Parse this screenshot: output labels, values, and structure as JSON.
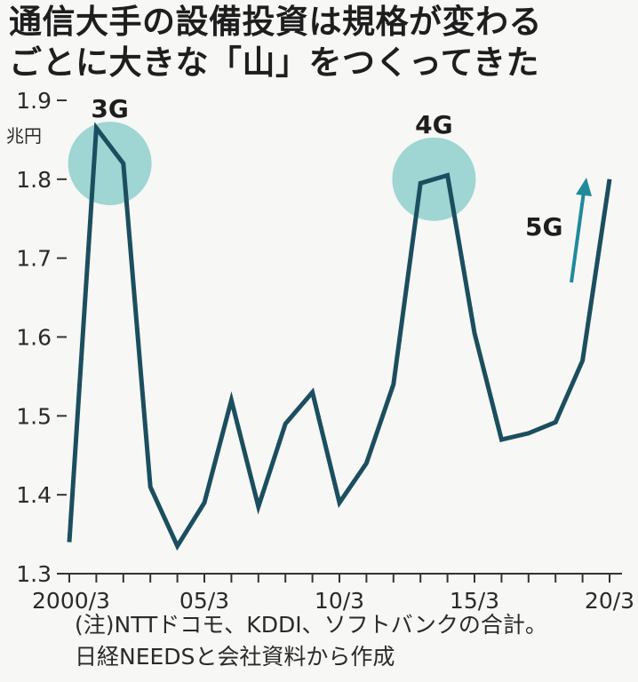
{
  "title": {
    "line1": "通信大手の設備投資は規格が変わる",
    "line2": "ごとに大きな「山」をつくってきた"
  },
  "note": {
    "line1": "(注)NTTドコモ、KDDI、ソフトバンクの合計。",
    "line2": "日経NEEDSと会社資料から作成"
  },
  "colors": {
    "line": "#1b4e5e",
    "highlight": "#8fcfcd",
    "arrow": "#1f8a9c",
    "axis": "#333333"
  },
  "chart_data": {
    "type": "line",
    "unit_label": "兆円",
    "x_tick_labels": [
      "2000/3",
      "05/3",
      "10/3",
      "15/3",
      "20/3"
    ],
    "ylim": [
      1.3,
      1.9
    ],
    "y_ticks": [
      "1.3",
      "1.4",
      "1.5",
      "1.6",
      "1.7",
      "1.8",
      "1.9"
    ],
    "series": [
      {
        "x": [
          "2000/3",
          "01/3",
          "02/3",
          "03/3",
          "04/3",
          "05/3",
          "06/3",
          "07/3",
          "08/3",
          "09/3",
          "10/3",
          "11/3",
          "12/3",
          "13/3",
          "14/3",
          "15/3",
          "16/3",
          "17/3",
          "18/3",
          "19/3",
          "20/3"
        ],
        "values": [
          1.34,
          1.865,
          1.82,
          1.41,
          1.335,
          1.39,
          1.52,
          1.385,
          1.49,
          1.53,
          1.39,
          1.44,
          1.54,
          1.795,
          1.805,
          1.605,
          1.47,
          1.478,
          1.492,
          1.57,
          1.8
        ]
      }
    ],
    "annotations": [
      {
        "label": "3G",
        "x_index": 1.5,
        "y": 1.82
      },
      {
        "label": "4G",
        "x_index": 13.5,
        "y": 1.8
      },
      {
        "label": "5G",
        "x_index": 19,
        "y": 1.74,
        "arrow": true
      }
    ]
  }
}
